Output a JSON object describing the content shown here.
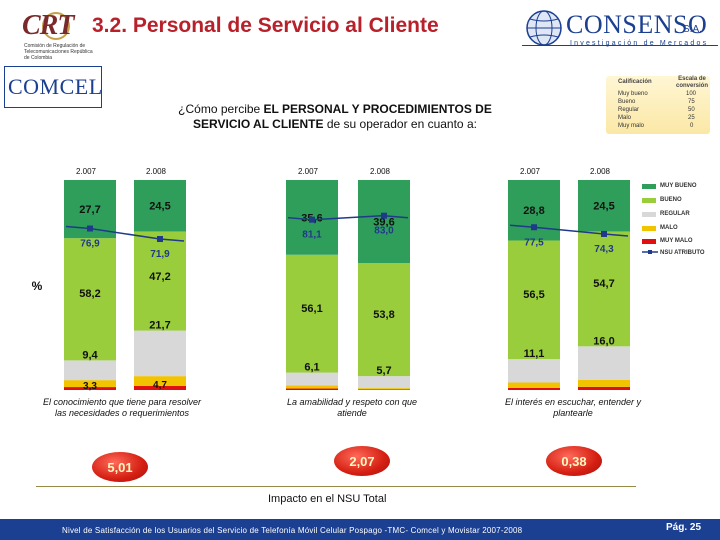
{
  "header": {
    "crt_logo": "CRT",
    "crt_subtitle": "Comisión de Regulación de Telecomunicaciones República de Colombia",
    "title": "3.2. Personal de Servicio al Cliente",
    "consenso_name": "CONSENSO",
    "consenso_sa": "S.A.",
    "consenso_tagline": "Investigación de Mercados",
    "comcel_logo": "COMCEL"
  },
  "question": {
    "prefix": "¿Cómo percibe ",
    "bold": "EL PERSONAL Y PROCEDIMIENTOS DE SERVICIO AL CLIENTE",
    "suffix": " de su operador en cuanto a:"
  },
  "scale": {
    "col1": "Calificación",
    "col2": "Escala de conversión",
    "rows": [
      {
        "label": "Muy bueno",
        "value": "100"
      },
      {
        "label": "Bueno",
        "value": "75"
      },
      {
        "label": "Regular",
        "value": "50"
      },
      {
        "label": "Malo",
        "value": "25"
      },
      {
        "label": "Muy malo",
        "value": "0"
      }
    ]
  },
  "colors": {
    "muy_bueno": "#2e9e5a",
    "bueno": "#9acd3c",
    "regular": "#d8d8d8",
    "malo": "#f2c400",
    "muy_malo": "#e01010",
    "nsu": "#1f3a8a"
  },
  "chart_data": {
    "type": "bar",
    "stacked": true,
    "ylabel": "%",
    "years": [
      "2.007",
      "2.008"
    ],
    "groups": [
      {
        "caption": "El conocimiento que tiene para resolver las necesidades o requerimientos",
        "bars": [
          {
            "year": "2.007",
            "muy_bueno": 27.7,
            "bueno": 58.2,
            "regular": 9.4,
            "malo": 3.3,
            "muy_malo": 1.4,
            "labels": [
              "27,7",
              "58,2",
              "9,4",
              "3,3"
            ],
            "nsu": 76.9,
            "nsu_label": "76,9"
          },
          {
            "year": "2.008",
            "muy_bueno": 24.5,
            "bueno": 47.2,
            "regular": 21.7,
            "malo": 4.7,
            "muy_malo": 1.9,
            "labels": [
              "24,5",
              "47,2",
              "21,7",
              "4,7"
            ],
            "nsu": 71.9,
            "nsu_label": "71,9"
          }
        ]
      },
      {
        "caption": "La amabilidad y respeto con que atiende",
        "bars": [
          {
            "year": "2.007",
            "muy_bueno": 35.6,
            "bueno": 56.1,
            "regular": 6.1,
            "malo": 1.5,
            "muy_malo": 0.7,
            "labels": [
              "35,6",
              "56,1",
              "6,1",
              ""
            ],
            "nsu": 81.1,
            "nsu_label": "81,1"
          },
          {
            "year": "2.008",
            "muy_bueno": 39.6,
            "bueno": 53.8,
            "regular": 5.7,
            "malo": 0.6,
            "muy_malo": 0.3,
            "labels": [
              "39,6",
              "53,8",
              "5,7",
              ""
            ],
            "nsu": 83.0,
            "nsu_label": "83,0"
          }
        ]
      },
      {
        "caption": "El interés en escuchar, entender y plantearle",
        "bars": [
          {
            "year": "2.007",
            "muy_bueno": 28.8,
            "bueno": 56.5,
            "regular": 11.1,
            "malo": 2.6,
            "muy_malo": 1.0,
            "labels": [
              "28,8",
              "56,5",
              "11,1",
              ""
            ],
            "nsu": 77.5,
            "nsu_label": "77,5"
          },
          {
            "year": "2.008",
            "muy_bueno": 24.5,
            "bueno": 54.7,
            "regular": 16.0,
            "malo": 3.3,
            "muy_malo": 1.5,
            "labels": [
              "24,5",
              "54,7",
              "16,0",
              ""
            ],
            "nsu": 74.3,
            "nsu_label": "74,3"
          }
        ]
      }
    ],
    "legend": [
      "MUY BUENO",
      "BUENO",
      "REGULAR",
      "MALO",
      "MUY MALO",
      "NSU ATRIBUTO"
    ]
  },
  "impact": {
    "title": "Impacto en el NSU Total",
    "values": [
      "5,01",
      "2,07",
      "0,38"
    ]
  },
  "footer": {
    "text": "Nivel de Satisfacción de los Usuarios del Servicio de Telefonía Móvil Celular Pospago -TMC- Comcel y Movistar 2007-2008",
    "page": "Pág. 25"
  }
}
